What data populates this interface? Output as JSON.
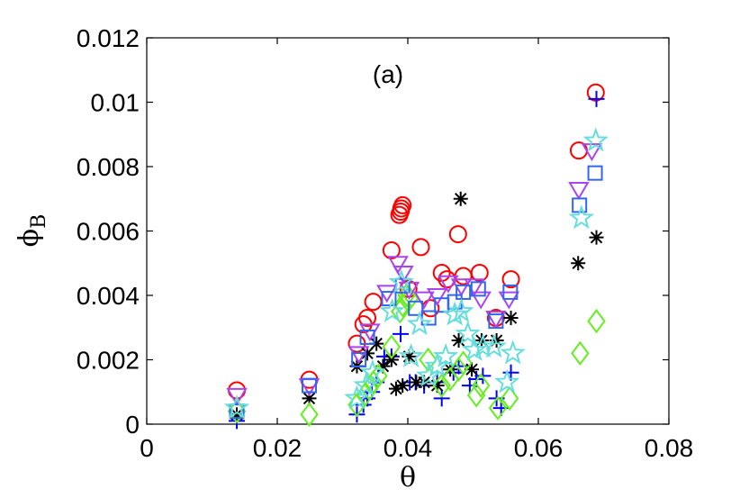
{
  "chart_data": {
    "type": "scatter",
    "title": "",
    "annotation": "(a)",
    "xlabel": "θ",
    "ylabel": "ϕ",
    "ylabel_subscript": "B",
    "xlim": [
      0,
      0.08
    ],
    "ylim": [
      0,
      0.012
    ],
    "xticks": [
      "0",
      "0.02",
      "0.04",
      "0.06",
      "0.08"
    ],
    "yticks": [
      "0",
      "0.002",
      "0.004",
      "0.006",
      "0.008",
      "0.01",
      "0.012"
    ],
    "grid": false,
    "legend": "none",
    "series": [
      {
        "name": "circle",
        "marker": "circle",
        "color": "#ff0000",
        "points": [
          [
            0.0138,
            0.00105
          ],
          [
            0.0249,
            0.00138
          ],
          [
            0.0322,
            0.0025
          ],
          [
            0.0332,
            0.0031
          ],
          [
            0.0338,
            0.0033
          ],
          [
            0.0347,
            0.0038
          ],
          [
            0.0375,
            0.0054
          ],
          [
            0.0387,
            0.0065
          ],
          [
            0.0389,
            0.0066
          ],
          [
            0.039,
            0.0067
          ],
          [
            0.0392,
            0.0068
          ],
          [
            0.0401,
            0.0042
          ],
          [
            0.042,
            0.0055
          ],
          [
            0.0435,
            0.0036
          ],
          [
            0.0452,
            0.0047
          ],
          [
            0.046,
            0.0045
          ],
          [
            0.0477,
            0.0059
          ],
          [
            0.0485,
            0.0046
          ],
          [
            0.051,
            0.0047
          ],
          [
            0.0535,
            0.0033
          ],
          [
            0.0558,
            0.0045
          ],
          [
            0.0662,
            0.0085
          ],
          [
            0.0688,
            0.0103
          ]
        ]
      },
      {
        "name": "plus",
        "marker": "plus",
        "color": "#0000ff",
        "points": [
          [
            0.0138,
            0.0001
          ],
          [
            0.0322,
            0.0003
          ],
          [
            0.0332,
            0.0006
          ],
          [
            0.0338,
            0.0008
          ],
          [
            0.0345,
            0.001
          ],
          [
            0.0352,
            0.0013
          ],
          [
            0.0364,
            0.0021
          ],
          [
            0.0375,
            0.0021
          ],
          [
            0.0389,
            0.0028
          ],
          [
            0.0403,
            0.0013
          ],
          [
            0.0412,
            0.0013
          ],
          [
            0.0425,
            0.0012
          ],
          [
            0.0445,
            0.0013
          ],
          [
            0.0452,
            0.0008
          ],
          [
            0.047,
            0.0016
          ],
          [
            0.0478,
            0.0018
          ],
          [
            0.0495,
            0.0012
          ],
          [
            0.0505,
            0.0014
          ],
          [
            0.0515,
            0.0015
          ],
          [
            0.0536,
            0.0008
          ],
          [
            0.0543,
            0.0005
          ],
          [
            0.0558,
            0.0016
          ],
          [
            0.0689,
            0.0101
          ]
        ]
      },
      {
        "name": "asterisk",
        "marker": "asterisk",
        "color": "#000000",
        "points": [
          [
            0.0138,
            0.0003
          ],
          [
            0.0249,
            0.0008
          ],
          [
            0.0322,
            0.0018
          ],
          [
            0.0338,
            0.0022
          ],
          [
            0.0352,
            0.0025
          ],
          [
            0.0362,
            0.0018
          ],
          [
            0.0375,
            0.002
          ],
          [
            0.0382,
            0.0011
          ],
          [
            0.0392,
            0.0012
          ],
          [
            0.0402,
            0.0021
          ],
          [
            0.0413,
            0.0013
          ],
          [
            0.0425,
            0.0013
          ],
          [
            0.0445,
            0.0012
          ],
          [
            0.0465,
            0.0017
          ],
          [
            0.0478,
            0.0026
          ],
          [
            0.0481,
            0.007
          ],
          [
            0.0498,
            0.0017
          ],
          [
            0.0513,
            0.0026
          ],
          [
            0.0536,
            0.0026
          ],
          [
            0.0558,
            0.0033
          ],
          [
            0.0661,
            0.005
          ],
          [
            0.0689,
            0.0058
          ]
        ]
      },
      {
        "name": "diamond",
        "marker": "diamond",
        "color": "#66ee22",
        "points": [
          [
            0.0138,
            0.0004
          ],
          [
            0.0249,
            0.0003
          ],
          [
            0.0322,
            0.0006
          ],
          [
            0.0334,
            0.0009
          ],
          [
            0.0341,
            0.0011
          ],
          [
            0.0347,
            0.0013
          ],
          [
            0.0355,
            0.0015
          ],
          [
            0.0375,
            0.0024
          ],
          [
            0.0388,
            0.0035
          ],
          [
            0.0392,
            0.0037
          ],
          [
            0.0398,
            0.004
          ],
          [
            0.0403,
            0.0039
          ],
          [
            0.0431,
            0.002
          ],
          [
            0.0452,
            0.0012
          ],
          [
            0.0465,
            0.0014
          ],
          [
            0.0478,
            0.0017
          ],
          [
            0.0485,
            0.0019
          ],
          [
            0.0505,
            0.0009
          ],
          [
            0.0512,
            0.0012
          ],
          [
            0.0538,
            0.0005
          ],
          [
            0.0556,
            0.0008
          ],
          [
            0.0664,
            0.0022
          ],
          [
            0.0689,
            0.0032
          ]
        ]
      },
      {
        "name": "triangle-down",
        "marker": "triangle-down",
        "color": "#aa44ee",
        "points": [
          [
            0.0138,
            0.0009
          ],
          [
            0.0249,
            0.0012
          ],
          [
            0.0325,
            0.0022
          ],
          [
            0.0342,
            0.0029
          ],
          [
            0.0368,
            0.0041
          ],
          [
            0.0385,
            0.005
          ],
          [
            0.0393,
            0.0047
          ],
          [
            0.0402,
            0.0042
          ],
          [
            0.0425,
            0.0039
          ],
          [
            0.0445,
            0.004
          ],
          [
            0.0462,
            0.0044
          ],
          [
            0.0482,
            0.0043
          ],
          [
            0.0502,
            0.0043
          ],
          [
            0.0512,
            0.0039
          ],
          [
            0.0535,
            0.0033
          ],
          [
            0.0555,
            0.0039
          ],
          [
            0.0662,
            0.0073
          ],
          [
            0.0682,
            0.0085
          ]
        ]
      },
      {
        "name": "square",
        "marker": "square",
        "color": "#3366ee",
        "points": [
          [
            0.0138,
            0.0004
          ],
          [
            0.0249,
            0.0012
          ],
          [
            0.0325,
            0.002
          ],
          [
            0.0338,
            0.0027
          ],
          [
            0.0371,
            0.0039
          ],
          [
            0.0392,
            0.0043
          ],
          [
            0.0412,
            0.0036
          ],
          [
            0.0432,
            0.0033
          ],
          [
            0.0452,
            0.0037
          ],
          [
            0.0472,
            0.0038
          ],
          [
            0.0485,
            0.0041
          ],
          [
            0.0508,
            0.0042
          ],
          [
            0.0535,
            0.0032
          ],
          [
            0.0557,
            0.0041
          ],
          [
            0.0663,
            0.0068
          ],
          [
            0.0687,
            0.0078
          ]
        ]
      },
      {
        "name": "pentagram",
        "marker": "star",
        "color": "#66dddd",
        "points": [
          [
            0.0138,
            0.0005
          ],
          [
            0.0322,
            0.0008
          ],
          [
            0.0336,
            0.0012
          ],
          [
            0.0346,
            0.0016
          ],
          [
            0.0376,
            0.0035
          ],
          [
            0.039,
            0.0044
          ],
          [
            0.0405,
            0.0021
          ],
          [
            0.0418,
            0.0031
          ],
          [
            0.0432,
            0.0015
          ],
          [
            0.0445,
            0.0018
          ],
          [
            0.0458,
            0.0021
          ],
          [
            0.0472,
            0.0034
          ],
          [
            0.0482,
            0.0035
          ],
          [
            0.0492,
            0.0028
          ],
          [
            0.0502,
            0.0023
          ],
          [
            0.0515,
            0.0024
          ],
          [
            0.0532,
            0.0024
          ],
          [
            0.0552,
            0.0013
          ],
          [
            0.0561,
            0.0022
          ],
          [
            0.0666,
            0.0064
          ],
          [
            0.0688,
            0.0088
          ]
        ]
      }
    ]
  }
}
